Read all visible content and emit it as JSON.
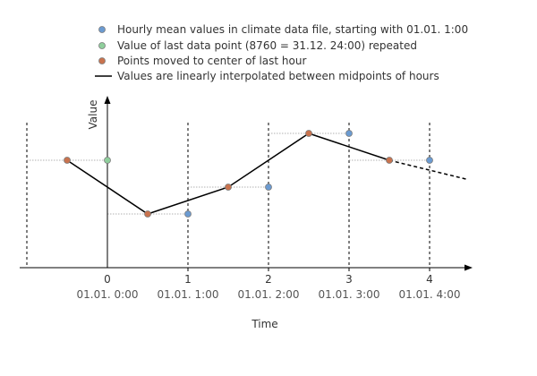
{
  "colors": {
    "hourly_mean": "#6b9bd1",
    "last_point": "#8fcf9c",
    "moved": "#c9734e",
    "point_stroke": "#7a7a7a",
    "line": "#000000",
    "axis": "#000000",
    "guide": "#000000",
    "helper": "#999999"
  },
  "legend": {
    "hourly_mean": "Hourly mean values in climate data file, starting with 01.01. 1:00",
    "last_point": "Value of last data point (8760 = 31.12. 24:00) repeated",
    "moved": "Points moved to center of last hour",
    "line": "Values are linearly interpolated between midpoints of hours"
  },
  "axes": {
    "xlabel": "Time",
    "ylabel": "Value"
  },
  "chart_data": {
    "type": "line",
    "xlabel": "Time",
    "ylabel": "Value",
    "xlim": [
      -1,
      4.5
    ],
    "ylim": [
      0,
      6.5
    ],
    "ticks": [
      {
        "x": 0,
        "label": "0",
        "date": "01.01. 0:00"
      },
      {
        "x": 1,
        "label": "1",
        "date": "01.01. 1:00"
      },
      {
        "x": 2,
        "label": "2",
        "date": "01.01. 2:00"
      },
      {
        "x": 3,
        "label": "3",
        "date": "01.01. 3:00"
      },
      {
        "x": 4,
        "label": "4",
        "date": "01.01. 4:00"
      }
    ],
    "guides_x": [
      -1,
      1,
      2,
      3,
      4
    ],
    "series": [
      {
        "key": "hourly_mean",
        "points": [
          {
            "x": 1,
            "y": 2.0
          },
          {
            "x": 2,
            "y": 3.0
          },
          {
            "x": 3,
            "y": 5.0
          },
          {
            "x": 4,
            "y": 4.0
          }
        ]
      },
      {
        "key": "last_point",
        "points": [
          {
            "x": 0,
            "y": 4.0
          }
        ]
      },
      {
        "key": "moved",
        "points": [
          {
            "x": -0.5,
            "y": 4.0
          },
          {
            "x": 0.5,
            "y": 2.0
          },
          {
            "x": 1.5,
            "y": 3.0
          },
          {
            "x": 2.5,
            "y": 5.0
          },
          {
            "x": 3.5,
            "y": 4.0
          }
        ]
      }
    ],
    "interpolated_line": [
      {
        "x": -0.5,
        "y": 4.0
      },
      {
        "x": 0.5,
        "y": 2.0
      },
      {
        "x": 1.5,
        "y": 3.0
      },
      {
        "x": 2.5,
        "y": 5.0
      },
      {
        "x": 3.5,
        "y": 4.0
      }
    ],
    "extrapolation": [
      {
        "x": 3.5,
        "y": 4.0
      },
      {
        "x": 4.45,
        "y": 3.3
      }
    ],
    "helper_segments": [
      {
        "x1": -1,
        "x2": 0,
        "y": 4.0
      },
      {
        "x1": 0,
        "x2": 1,
        "y": 2.0
      },
      {
        "x1": 1,
        "x2": 2,
        "y": 3.0
      },
      {
        "x1": 2,
        "x2": 3,
        "y": 5.0
      },
      {
        "x1": 3,
        "x2": 4,
        "y": 4.0
      }
    ]
  }
}
